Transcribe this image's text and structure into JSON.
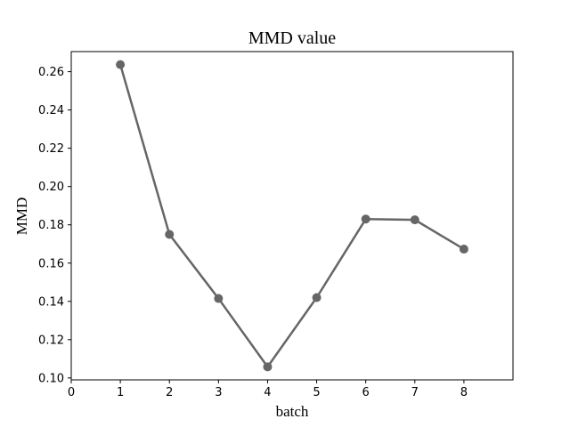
{
  "chart_data": {
    "type": "line",
    "title": "MMD value",
    "xlabel": "batch",
    "ylabel": "MMD",
    "x": [
      1,
      2,
      3,
      4,
      5,
      6,
      7,
      8
    ],
    "series": [
      {
        "values": [
          0.2637,
          0.175,
          0.1415,
          0.1058,
          0.142,
          0.183,
          0.1826,
          0.1673
        ]
      }
    ],
    "xlim": [
      0,
      9
    ],
    "ylim": [
      0.099,
      0.2705
    ],
    "xticks": [
      0,
      1,
      2,
      3,
      4,
      5,
      6,
      7,
      8
    ],
    "xtick_labels": [
      "0",
      "1",
      "2",
      "3",
      "4",
      "5",
      "6",
      "7",
      "8"
    ],
    "yticks": [
      0.1,
      0.12,
      0.14,
      0.16,
      0.18,
      0.2,
      0.22,
      0.24,
      0.26
    ],
    "ytick_labels": [
      "0.10",
      "0.12",
      "0.14",
      "0.16",
      "0.18",
      "0.20",
      "0.22",
      "0.24",
      "0.26"
    ],
    "grid": false,
    "color": "#666666"
  }
}
